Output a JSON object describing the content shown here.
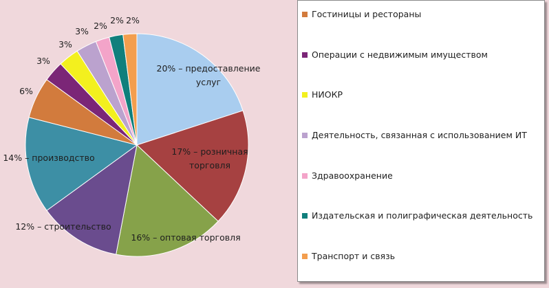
{
  "chart_data": {
    "type": "pie",
    "slices": [
      {
        "name": "предоставление услуг",
        "value": 20,
        "label": "20% – предоставление услуг",
        "color": "#a9cdef"
      },
      {
        "name": "розничная торговля",
        "value": 17,
        "label": "17% – розничная торговля",
        "color": "#a64141"
      },
      {
        "name": "оптовая торговля",
        "value": 16,
        "label": "16% – оптовая торговля",
        "color": "#86a24a"
      },
      {
        "name": "строительство",
        "value": 12,
        "label": "12% – строительство",
        "color": "#6a4c8e"
      },
      {
        "name": "производство",
        "value": 14,
        "label": "14%  – производство",
        "color": "#3d8fa5"
      },
      {
        "name": "Гостиницы и рестораны",
        "value": 6,
        "label": "6%",
        "color": "#d27b3d"
      },
      {
        "name": "Операции с недвижимым имуществом",
        "value": 3,
        "label": "3%",
        "color": "#7b2677"
      },
      {
        "name": "НИОКР",
        "value": 3,
        "label": "3%",
        "color": "#f3f01e"
      },
      {
        "name": "Деятельность, связанная с использованием ИТ",
        "value": 3,
        "label": "3%",
        "color": "#bba2ce"
      },
      {
        "name": "Здравоохранение",
        "value": 2,
        "label": "2%",
        "color": "#f3a4c9"
      },
      {
        "name": "Издательская и полиграфическая деятельность",
        "value": 2,
        "label": "2%",
        "color": "#107f7c"
      },
      {
        "name": "Транспорт и связь",
        "value": 2,
        "label": "2%",
        "color": "#f39e4e"
      }
    ]
  },
  "legend": {
    "items": [
      {
        "label": "Гостиницы и рестораны",
        "color": "#d27b3d"
      },
      {
        "label": "Операции с недвижимым имуществом",
        "color": "#7b2677"
      },
      {
        "label": "НИОКР",
        "color": "#f3f01e"
      },
      {
        "label": "Деятельность, связанная с использованием ИТ",
        "color": "#bba2ce"
      },
      {
        "label": "Здравоохранение",
        "color": "#f3a4c9"
      },
      {
        "label": "Издательская и полиграфическая деятельность",
        "color": "#107f7c"
      },
      {
        "label": "Транспорт и связь",
        "color": "#f39e4e"
      }
    ]
  }
}
